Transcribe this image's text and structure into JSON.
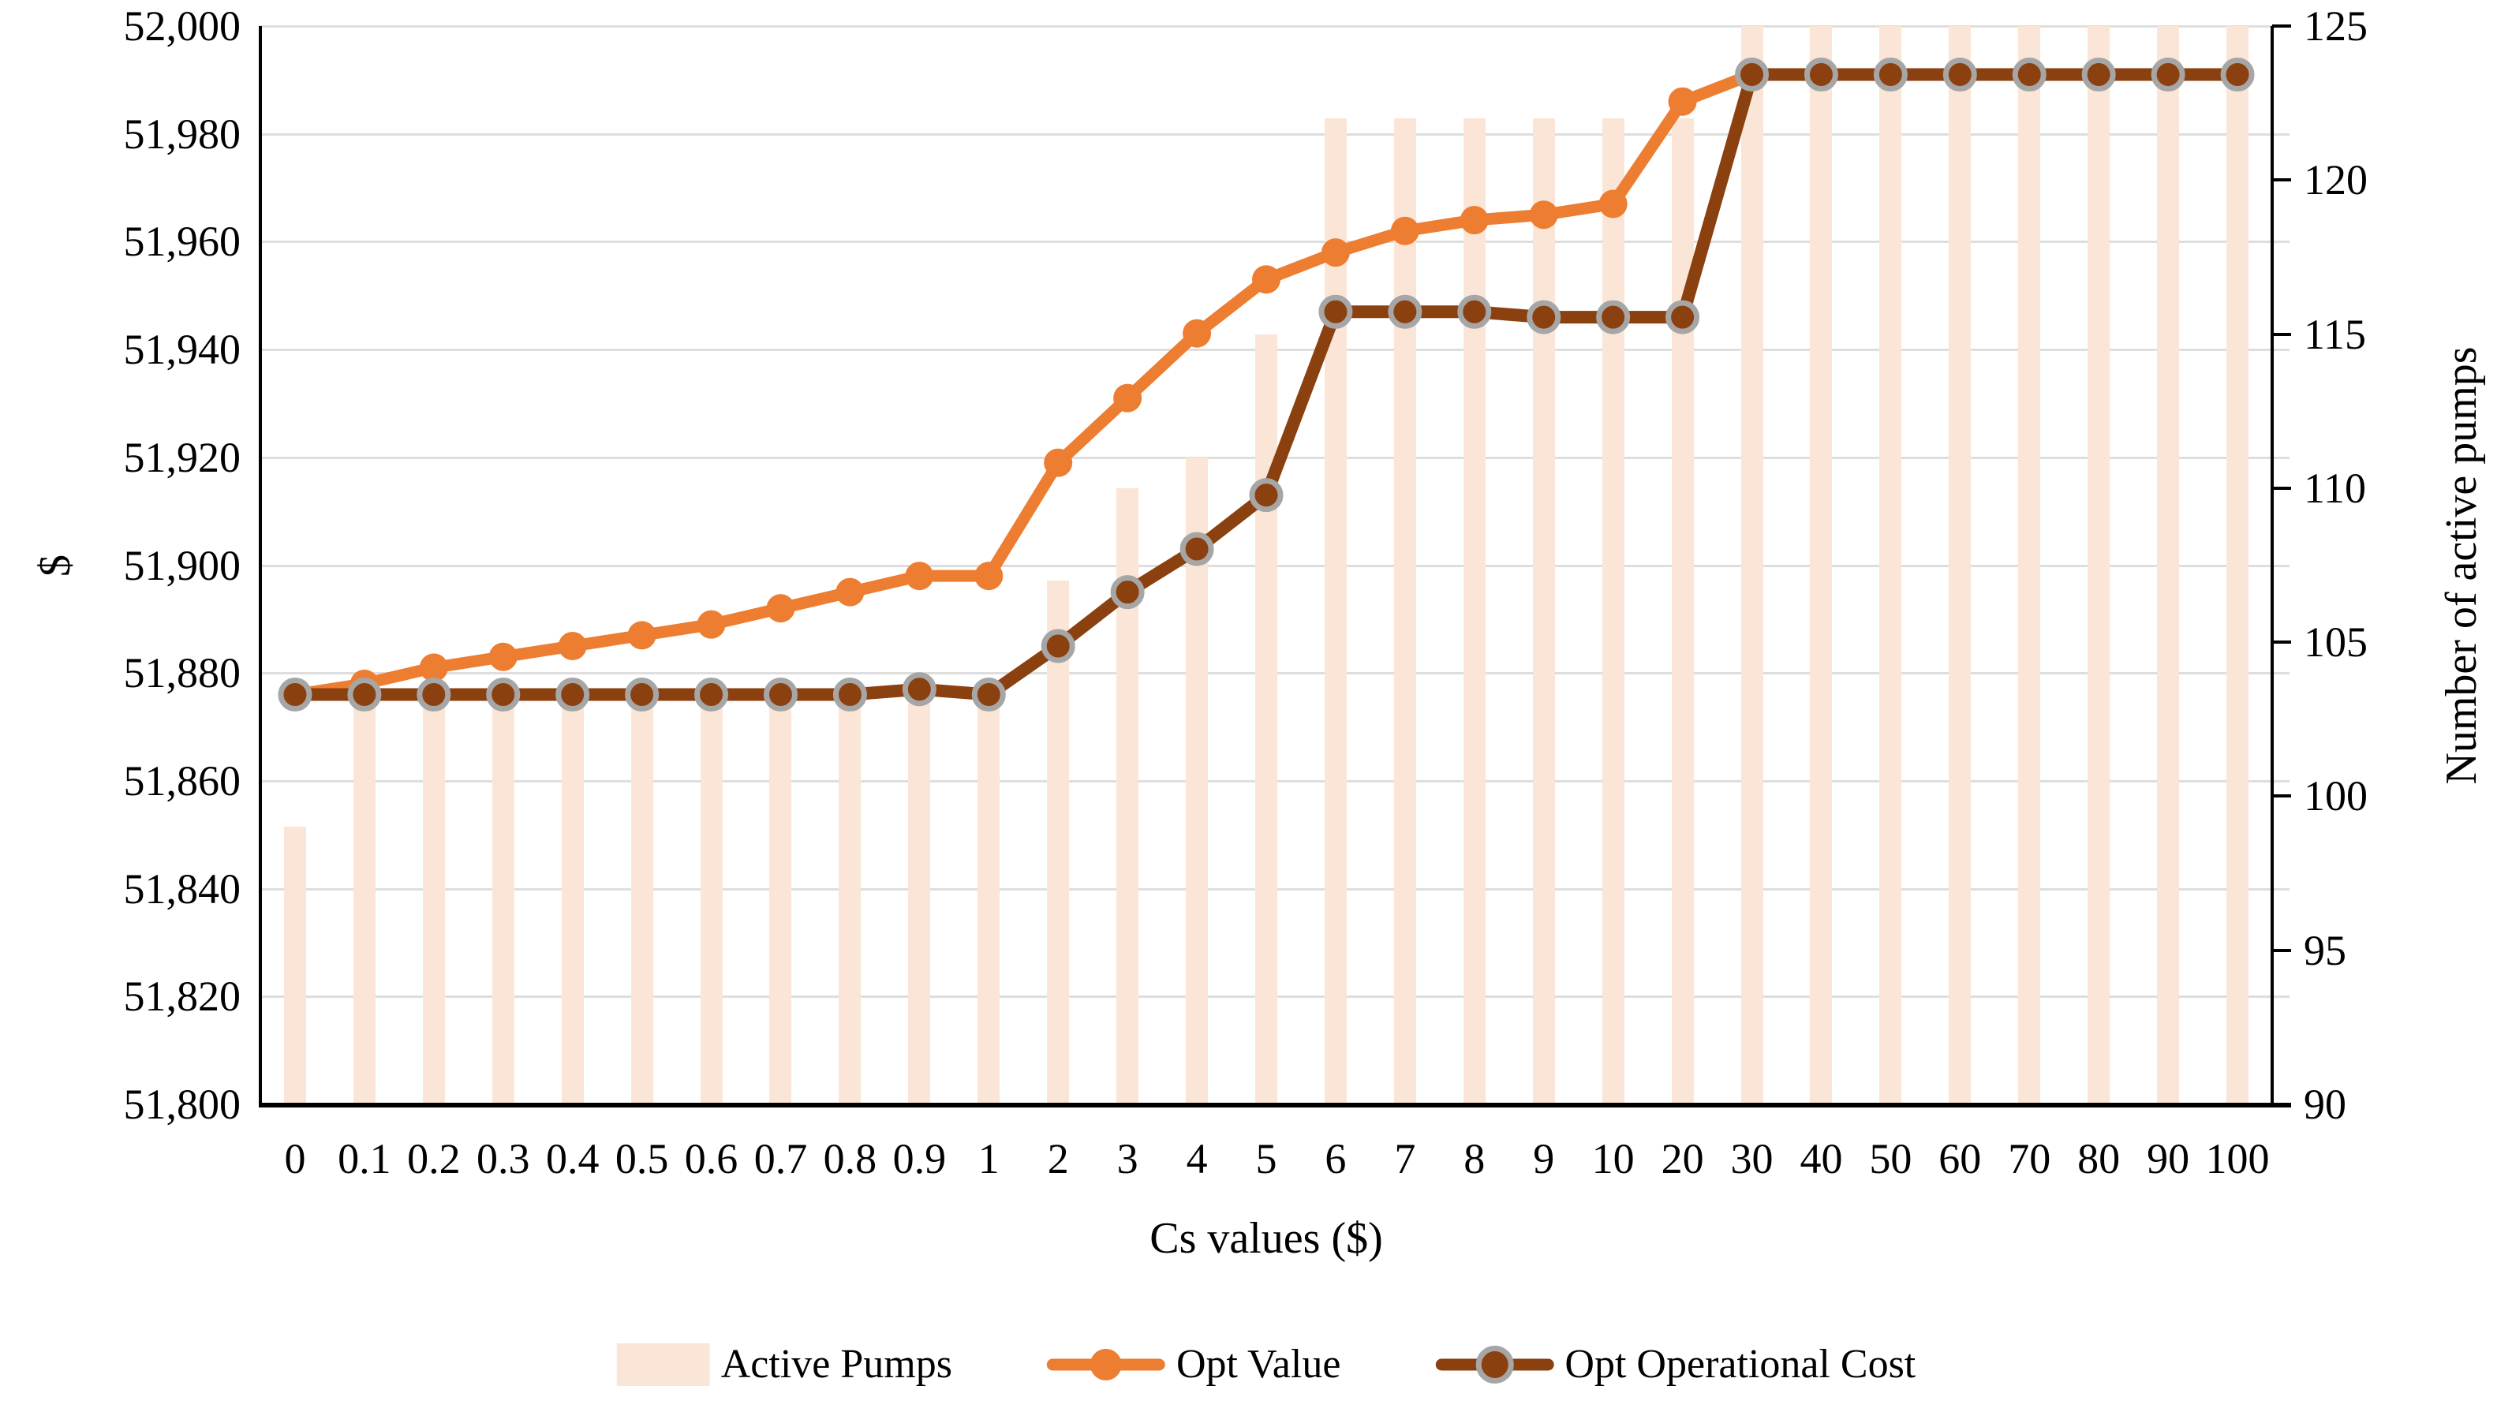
{
  "chart_data": {
    "type": "combo-bar-line",
    "title": "",
    "x_axis": {
      "title": "Cs values ($)",
      "categories": [
        "0",
        "0.1",
        "0.2",
        "0.3",
        "0.4",
        "0.5",
        "0.6",
        "0.7",
        "0.8",
        "0.9",
        "1",
        "2",
        "3",
        "4",
        "5",
        "6",
        "7",
        "8",
        "9",
        "10",
        "20",
        "30",
        "40",
        "50",
        "60",
        "70",
        "80",
        "90",
        "100"
      ]
    },
    "y_left_axis": {
      "title": "$",
      "min": 51800,
      "max": 52000,
      "step": 20,
      "tick_labels": [
        "51,800",
        "51,820",
        "51,840",
        "51,860",
        "51,880",
        "51,900",
        "51,920",
        "51,940",
        "51,960",
        "51,980",
        "52,000"
      ]
    },
    "y_right_axis": {
      "title": "Number of active pumps",
      "min": 90,
      "max": 125,
      "step": 5,
      "tick_labels": [
        "90",
        "95",
        "100",
        "105",
        "110",
        "115",
        "120",
        "125"
      ]
    },
    "grid": "horizontal-only",
    "legend_position": "bottom",
    "series": [
      {
        "name": "Active Pumps",
        "type": "bar",
        "axis": "right",
        "color": "#FBE5D6",
        "values": [
          99,
          103,
          103,
          103,
          103,
          103,
          103,
          103,
          103,
          103,
          103,
          107,
          110,
          111,
          115,
          122,
          122,
          122,
          122,
          122,
          122,
          125,
          125,
          125,
          125,
          125,
          125,
          125,
          125
        ]
      },
      {
        "name": "Opt Value",
        "type": "line",
        "axis": "left",
        "color": "#ED7D31",
        "marker": "circle",
        "values": [
          51876,
          51878,
          51881,
          51883,
          51885,
          51887,
          51889,
          51892,
          51895,
          51898,
          51898,
          51919,
          51931,
          51943,
          51953,
          51958,
          51962,
          51964,
          51965,
          51967,
          51986,
          51991,
          51991,
          51991,
          51991,
          51991,
          51991,
          51991,
          51991
        ]
      },
      {
        "name": "Opt Operational Cost",
        "type": "line",
        "axis": "left",
        "color": "#8B400F",
        "marker": "circle-ring",
        "marker_ring_color": "#A6A6A6",
        "values": [
          51876,
          51876,
          51876,
          51876,
          51876,
          51876,
          51876,
          51876,
          51876,
          51877,
          51876,
          51885,
          51895,
          51903,
          51913,
          51947,
          51947,
          51947,
          51946,
          51946,
          51946,
          51991,
          51991,
          51991,
          51991,
          51991,
          51991,
          51991,
          51991
        ]
      }
    ],
    "colors": {
      "gridline": "#DEDEDE",
      "axis_line": "#000000",
      "text": "#000000",
      "background": "#FFFFFF"
    }
  }
}
